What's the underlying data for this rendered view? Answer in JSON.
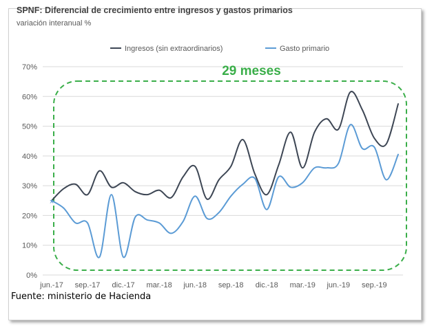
{
  "colors": {
    "ingresos": "#3d4654",
    "gasto": "#5b9bd5",
    "annotation": "#3aae49",
    "grid": "#d9d9d9",
    "text": "#595959"
  },
  "source_text": "Fuente: ministerio de Hacienda",
  "annotation": {
    "label": "29 meses"
  },
  "chart_data": {
    "type": "line",
    "title": "SPNF: Diferencial de crecimiento entre ingresos y gastos primarios",
    "subtitle": "variación interanual %",
    "xlabel": "",
    "ylabel": "",
    "ylim": [
      0,
      70
    ],
    "ytick_labels": [
      "0%",
      "10%",
      "20%",
      "30%",
      "40%",
      "50%",
      "60%",
      "70%"
    ],
    "ytick_values": [
      0,
      10,
      20,
      30,
      40,
      50,
      60,
      70
    ],
    "x_tick_labels": [
      "jun.-17",
      "sep.-17",
      "dic.-17",
      "mar.-18",
      "jun.-18",
      "sep.-18",
      "dic.-18",
      "mar.-19",
      "jun.-19",
      "sep.-19"
    ],
    "x": [
      "jun.-17",
      "jul.-17",
      "ago.-17",
      "sep.-17",
      "oct.-17",
      "nov.-17",
      "dic.-17",
      "ene.-18",
      "feb.-18",
      "mar.-18",
      "abr.-18",
      "may.-18",
      "jun.-18",
      "jul.-18",
      "ago.-18",
      "sep.-18",
      "oct.-18",
      "nov.-18",
      "dic.-18",
      "ene.-19",
      "feb.-19",
      "mar.-19",
      "abr.-19",
      "may.-19",
      "jun.-19",
      "jul.-19",
      "ago.-19",
      "sep.-19",
      "oct.-19",
      "nov.-19"
    ],
    "grid": true,
    "legend": "top",
    "series": [
      {
        "name": "Ingresos (sin extraordinarios)",
        "color": "#3d4654",
        "values": [
          25,
          29,
          30.5,
          27,
          35,
          29.5,
          31,
          28,
          27,
          28.5,
          26,
          33,
          36.5,
          25.5,
          32,
          36.5,
          45.5,
          34,
          27,
          37,
          48,
          36,
          48,
          52.5,
          49,
          61.5,
          55.5,
          46,
          44,
          57.5
        ]
      },
      {
        "name": "Gasto primario",
        "color": "#5b9bd5",
        "values": [
          25,
          22.5,
          17.5,
          17.5,
          6,
          27,
          6,
          19.5,
          18.5,
          17.5,
          14,
          18,
          26.5,
          19,
          21,
          26.5,
          30.5,
          32.5,
          22,
          33,
          29.5,
          31,
          36,
          36,
          37.5,
          50.5,
          42.5,
          43,
          32,
          40.5
        ]
      }
    ]
  }
}
